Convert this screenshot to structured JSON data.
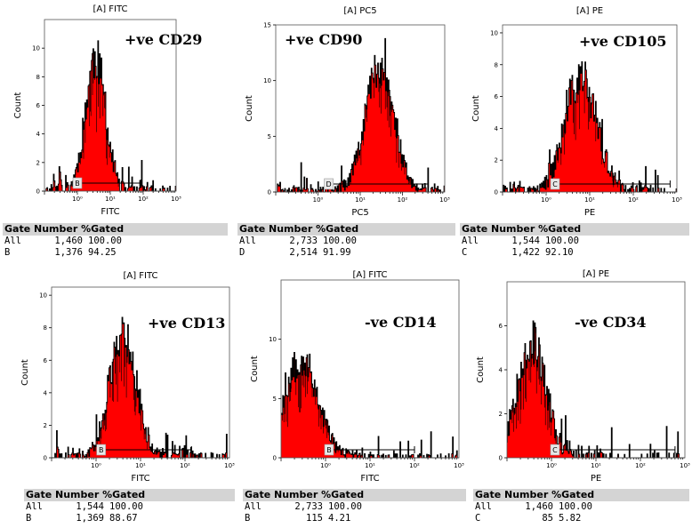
{
  "colors": {
    "fill": "#ff0000",
    "outline": "#000000",
    "header_bg": "#d4d4d4"
  },
  "stats_header": "Gate Number %Gated",
  "chart_data": [
    {
      "type": "histogram",
      "id": "cd29",
      "title": "[A] FITC",
      "xlabel": "FITC",
      "ylabel": "Count",
      "marker": "+ve CD29",
      "xscale": "log",
      "xlim": [
        0.1,
        1000
      ],
      "x_ticks": [
        {
          "v": 1,
          "label": "10⁰"
        },
        {
          "v": 10,
          "label": "10¹"
        },
        {
          "v": 100,
          "label": "10²"
        },
        {
          "v": 1000,
          "label": "10³"
        }
      ],
      "ylim": [
        0,
        12
      ],
      "y_ticks": [
        0,
        2,
        4,
        6,
        8,
        10
      ],
      "peak_log10x": 0.55,
      "width_log10x": 0.3,
      "peak_count": 9.2,
      "noise_max": 3.2,
      "seed": 11,
      "gate": {
        "label": "B",
        "start": 1.0,
        "end": 85
      },
      "stats": [
        {
          "name": "All",
          "number": "1,460",
          "pct": "100.00"
        },
        {
          "name": "B",
          "number": "1,376",
          "pct": "94.25"
        }
      ]
    },
    {
      "type": "histogram",
      "id": "cd90",
      "title": "[A] PC5",
      "xlabel": "PC5",
      "ylabel": "Count",
      "marker": "+ve CD90",
      "xscale": "log",
      "xlim": [
        0.1,
        1000
      ],
      "x_ticks": [
        {
          "v": 1,
          "label": "10⁰"
        },
        {
          "v": 10,
          "label": "10¹"
        },
        {
          "v": 100,
          "label": "10²"
        },
        {
          "v": 1000,
          "label": "10³"
        }
      ],
      "ylim": [
        0,
        15
      ],
      "y_ticks": [
        0,
        5,
        10,
        15
      ],
      "peak_log10x": 1.45,
      "width_log10x": 0.34,
      "peak_count": 11.2,
      "noise_max": 3.5,
      "seed": 23,
      "gate": {
        "label": "D",
        "start": 1.8,
        "end": 400
      },
      "stats": [
        {
          "name": "All",
          "number": "2,733",
          "pct": "100.00"
        },
        {
          "name": "D",
          "number": "2,514",
          "pct": "91.99"
        }
      ]
    },
    {
      "type": "histogram",
      "id": "cd105",
      "title": "[A] PE",
      "xlabel": "PE",
      "ylabel": "Count",
      "marker": "+ve CD105",
      "xscale": "log",
      "xlim": [
        0.1,
        1000
      ],
      "x_ticks": [
        {
          "v": 1,
          "label": "10⁰"
        },
        {
          "v": 10,
          "label": "10¹"
        },
        {
          "v": 100,
          "label": "10²"
        },
        {
          "v": 1000,
          "label": "10³"
        }
      ],
      "ylim": [
        0,
        10.5
      ],
      "y_ticks": [
        0,
        2,
        4,
        6,
        8,
        10
      ],
      "peak_log10x": 0.8,
      "width_log10x": 0.36,
      "peak_count": 7.0,
      "noise_max": 2.7,
      "seed": 37,
      "gate": {
        "label": "C",
        "start": 1.6,
        "end": 700
      },
      "stats": [
        {
          "name": "All",
          "number": "1,544",
          "pct": "100.00"
        },
        {
          "name": "C",
          "number": "1,422",
          "pct": "92.10"
        }
      ]
    },
    {
      "type": "histogram",
      "id": "cd13",
      "title": "[A] FITC",
      "xlabel": "FITC",
      "ylabel": "Count",
      "marker": "+ve CD13",
      "xscale": "log",
      "xlim": [
        0.1,
        1000
      ],
      "x_ticks": [
        {
          "v": 1,
          "label": "10⁰"
        },
        {
          "v": 10,
          "label": "10¹"
        },
        {
          "v": 100,
          "label": "10²"
        },
        {
          "v": 1000,
          "label": "10³"
        }
      ],
      "ylim": [
        0,
        10.5
      ],
      "y_ticks": [
        0,
        2,
        4,
        6,
        8,
        10
      ],
      "peak_log10x": 0.6,
      "width_log10x": 0.3,
      "peak_count": 7.6,
      "noise_max": 2.6,
      "seed": 41,
      "gate": {
        "label": "B",
        "start": 1.3,
        "end": 140
      },
      "stats": [
        {
          "name": "All",
          "number": "1,544",
          "pct": "100.00"
        },
        {
          "name": "B",
          "number": "1,369",
          "pct": "88.67"
        }
      ]
    },
    {
      "type": "histogram",
      "id": "cd14",
      "title": "[A] FITC",
      "xlabel": "FITC",
      "ylabel": "Count",
      "marker": "-ve CD14",
      "xscale": "log",
      "xlim": [
        0.1,
        1000
      ],
      "x_ticks": [
        {
          "v": 1,
          "label": "10⁰"
        },
        {
          "v": 10,
          "label": "10¹"
        },
        {
          "v": 100,
          "label": "10²"
        },
        {
          "v": 1000,
          "label": "10³"
        }
      ],
      "ylim": [
        0,
        15
      ],
      "y_ticks": [
        0,
        5,
        10
      ],
      "peak_log10x": -0.55,
      "width_log10x": 0.38,
      "peak_count": 8.2,
      "noise_max": 3.0,
      "seed": 53,
      "gate": {
        "label": "B",
        "start": 1.2,
        "end": 100
      },
      "stats": [
        {
          "name": "All",
          "number": "2,733",
          "pct": "100.00"
        },
        {
          "name": "B",
          "number": "115",
          "pct": "4.21"
        }
      ]
    },
    {
      "type": "histogram",
      "id": "cd34",
      "title": "[A] PE",
      "xlabel": "PE",
      "ylabel": "Count",
      "marker": "-ve CD34",
      "xscale": "log",
      "xlim": [
        0.1,
        1000
      ],
      "x_ticks": [
        {
          "v": 1,
          "label": "10⁰"
        },
        {
          "v": 10,
          "label": "10¹"
        },
        {
          "v": 100,
          "label": "10²"
        },
        {
          "v": 1000,
          "label": "10³"
        }
      ],
      "ylim": [
        0,
        8
      ],
      "y_ticks": [
        0,
        2,
        4,
        6
      ],
      "peak_log10x": -0.45,
      "width_log10x": 0.32,
      "peak_count": 5.2,
      "noise_max": 2.0,
      "seed": 67,
      "gate": {
        "label": "C",
        "start": 1.2,
        "end": 600
      },
      "stats": [
        {
          "name": "All",
          "number": "1,460",
          "pct": "100.00"
        },
        {
          "name": "C",
          "number": "85",
          "pct": "5.82"
        }
      ]
    }
  ]
}
